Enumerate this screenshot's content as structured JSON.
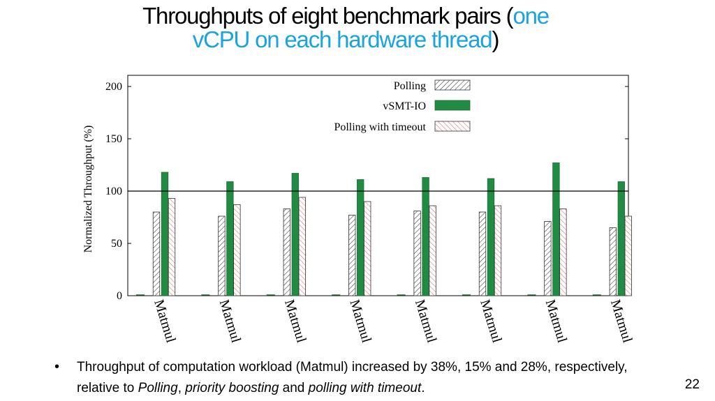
{
  "slide": {
    "title_part1": "Throughputs of eight benchmark pairs (",
    "title_accent": "one vCPU on each hardware thread",
    "title_part3": ")",
    "accent_color": "#1aa3dd",
    "bullet": {
      "text_1": "Throughput of computation workload (Matmul) increased by 38%, 15% and 28%, respectively, relative to ",
      "em_1": "Polling",
      "text_2": ", ",
      "em_2": "priority boosting",
      "text_3": " and ",
      "em_3": "polling with timeout",
      "text_4": "."
    },
    "page_number": "22"
  },
  "chart_data": {
    "type": "bar",
    "ylabel": "Normalized Throughput (%)",
    "ylim": [
      0,
      200
    ],
    "yticks": [
      0,
      50,
      100,
      150,
      200
    ],
    "reference_line": 100,
    "categories": [
      "Matmul",
      "Matmul",
      "Matmul",
      "Matmul",
      "Matmul",
      "Matmul",
      "Matmul",
      "Matmul"
    ],
    "legend_position": "top-right",
    "series": [
      {
        "name": "Polling",
        "values": [
          80,
          76,
          83,
          77,
          81,
          80,
          71,
          65
        ],
        "pattern": "hatch-black",
        "color": "#333333"
      },
      {
        "name": "vSMT-IO",
        "values": [
          118,
          109,
          117,
          111,
          113,
          112,
          127,
          109
        ],
        "pattern": "solid",
        "color": "#228b43"
      },
      {
        "name": "Polling with timeout",
        "values": [
          93,
          87,
          94,
          90,
          86,
          86,
          83,
          76
        ],
        "pattern": "hatch-red",
        "color": "#e06a6a"
      }
    ]
  }
}
